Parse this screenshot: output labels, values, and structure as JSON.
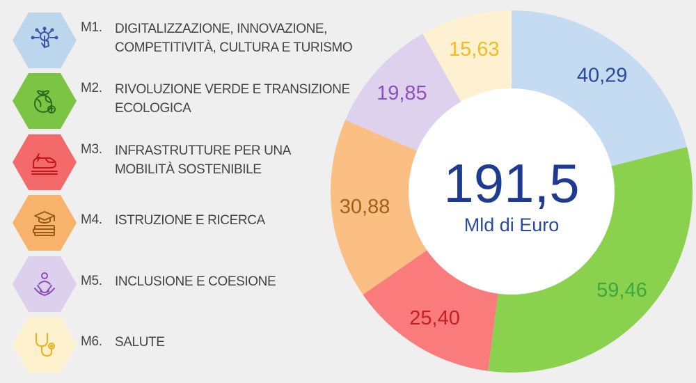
{
  "center": {
    "total": "191,5",
    "unit": "Mld di Euro"
  },
  "missions": [
    {
      "code": "M1.",
      "lines": [
        "DIGITALIZZAZIONE, INNOVAZIONE,",
        "COMPETITIVITÀ, CULTURA E TURISMO"
      ],
      "icon": "digital-touch-icon",
      "hex_color": "#bcd6ee",
      "icon_color": "#3b55a6"
    },
    {
      "code": "M2.",
      "lines": [
        "RIVOLUZIONE VERDE E TRANSIZIONE",
        "ECOLOGICA"
      ],
      "icon": "green-globe-icon",
      "hex_color": "#7cc544",
      "icon_color": "#2e6b1f"
    },
    {
      "code": "M3.",
      "lines": [
        "INFRASTRUTTURE PER UNA",
        "MOBILITÀ SOSTENIBILE"
      ],
      "icon": "train-icon",
      "hex_color": "#f46a6a",
      "icon_color": "#c01818"
    },
    {
      "code": "M4.",
      "lines": [
        "ISTRUZIONE E RICERCA"
      ],
      "icon": "graduation-books-icon",
      "hex_color": "#f7b36b",
      "icon_color": "#9a5a16"
    },
    {
      "code": "M5.",
      "lines": [
        "INCLUSIONE E COESIONE"
      ],
      "icon": "hands-together-icon",
      "hex_color": "#ddd0ec",
      "icon_color": "#8a4db8"
    },
    {
      "code": "M6.",
      "lines": [
        "SALUTE"
      ],
      "icon": "stethoscope-icon",
      "hex_color": "#fdf0cc",
      "icon_color": "#e8b21a"
    }
  ],
  "chart_data": {
    "type": "pie",
    "donut": true,
    "direction": "clockwise",
    "start": "top",
    "categories": [
      "M1.",
      "M2.",
      "M3.",
      "M4.",
      "M5.",
      "M6."
    ],
    "values": [
      40.29,
      59.46,
      25.4,
      30.88,
      19.85,
      15.63
    ],
    "labels": [
      "40,29",
      "59,46",
      "25,40",
      "30,88",
      "19,85",
      "15,63"
    ],
    "colors": [
      "#c5dbf1",
      "#8ad24d",
      "#fa7b7b",
      "#fbbf83",
      "#ded1ed",
      "#fdf1d1"
    ],
    "label_colors": [
      "#2a4aa0",
      "#3da83d",
      "#c81f1f",
      "#a0601a",
      "#8e4fbf",
      "#f2bb20"
    ]
  }
}
